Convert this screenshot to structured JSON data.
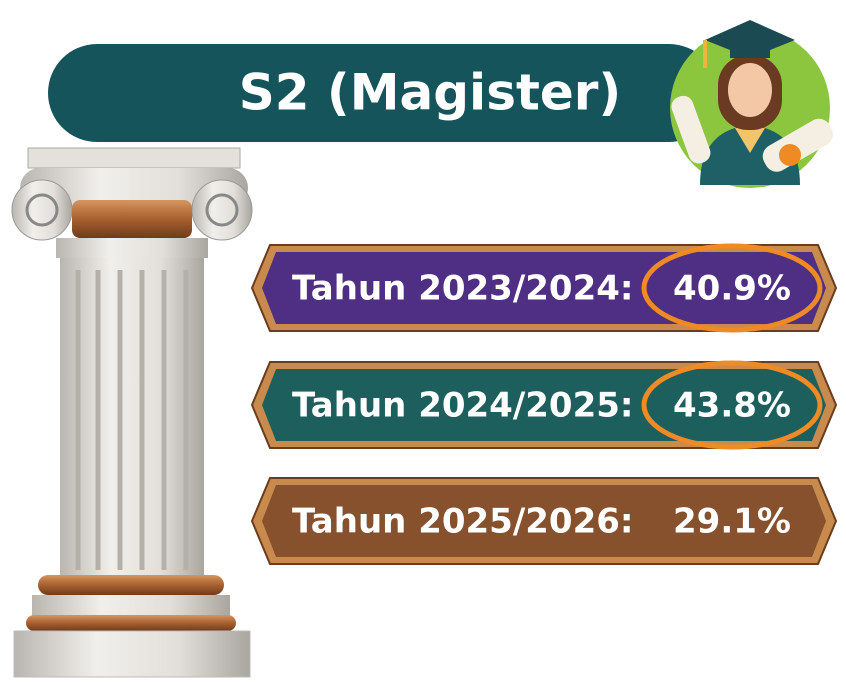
{
  "header": {
    "title": "S2 (Magister)"
  },
  "rows": [
    {
      "label": "Tahun 2023/2024:",
      "value": "40.9%",
      "color": "#4e2f84",
      "highlighted": true
    },
    {
      "label": "Tahun 2024/2025:",
      "value": "43.8%",
      "color": "#1d5f5c",
      "highlighted": true
    },
    {
      "label": "Tahun 2025/2026:",
      "value": "29.1%",
      "color": "#86512c",
      "highlighted": false
    }
  ]
}
